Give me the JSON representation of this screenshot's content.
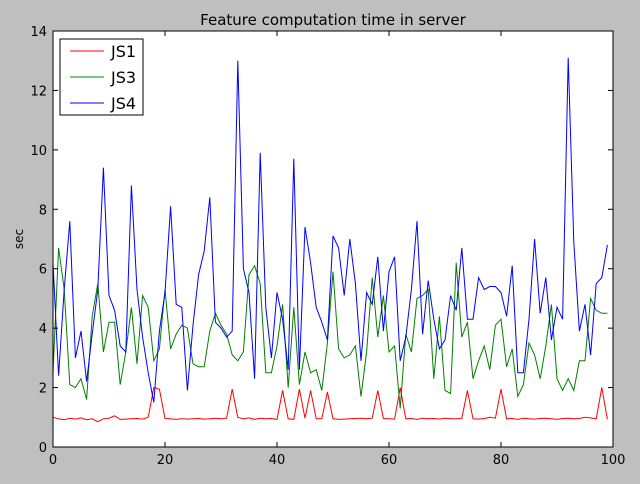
{
  "chart_data": {
    "type": "line",
    "title": "Feature computation time in server",
    "xlabel": "",
    "ylabel": "sec",
    "xlim": [
      0,
      100
    ],
    "ylim": [
      0,
      14
    ],
    "xticks": [
      0,
      20,
      40,
      60,
      80,
      100
    ],
    "yticks": [
      0,
      2,
      4,
      6,
      8,
      10,
      12,
      14
    ],
    "grid": false,
    "legend": "top-left",
    "series": [
      {
        "name": "JS1",
        "color": "#ff0000",
        "values": [
          1.0,
          0.95,
          0.92,
          0.97,
          0.94,
          0.98,
          0.92,
          0.95,
          0.85,
          0.95,
          0.97,
          1.05,
          0.93,
          0.94,
          0.95,
          0.96,
          0.94,
          1.0,
          2.0,
          1.95,
          0.96,
          0.95,
          0.93,
          0.95,
          0.94,
          0.95,
          0.96,
          0.94,
          0.95,
          0.97,
          0.95,
          0.97,
          1.95,
          1.0,
          0.95,
          0.98,
          0.93,
          0.97,
          0.95,
          0.96,
          0.93,
          1.9,
          0.95,
          0.93,
          1.95,
          0.97,
          1.9,
          0.95,
          0.95,
          1.85,
          0.95,
          0.93,
          0.94,
          0.95,
          0.96,
          0.97,
          0.95,
          0.97,
          1.9,
          0.96,
          0.95,
          0.94,
          2.0,
          0.95,
          0.96,
          0.93,
          0.97,
          0.95,
          0.96,
          0.94,
          0.97,
          0.95,
          0.95,
          0.96,
          1.9,
          0.95,
          0.94,
          0.96,
          1.0,
          0.97,
          1.95,
          0.95,
          0.96,
          0.93,
          0.97,
          0.95,
          0.94,
          0.96,
          0.97,
          0.95,
          0.93,
          0.96,
          0.97,
          0.95,
          0.96,
          1.0,
          0.98,
          0.95,
          2.0,
          0.93
        ]
      },
      {
        "name": "JS3",
        "color": "#008000",
        "values": [
          2.5,
          6.7,
          5.3,
          2.1,
          2.0,
          2.3,
          1.6,
          4.4,
          5.5,
          3.2,
          4.2,
          4.2,
          2.1,
          3.2,
          4.7,
          2.8,
          5.1,
          4.7,
          2.9,
          3.3,
          5.3,
          3.3,
          3.8,
          4.1,
          4.0,
          2.8,
          2.7,
          2.7,
          3.9,
          4.5,
          4.1,
          3.8,
          3.1,
          2.9,
          3.2,
          5.8,
          6.1,
          5.5,
          2.5,
          2.5,
          3.4,
          4.8,
          2.0,
          4.7,
          2.1,
          3.2,
          2.5,
          2.6,
          1.9,
          3.5,
          5.9,
          3.3,
          3.0,
          3.1,
          3.4,
          1.7,
          3.2,
          5.7,
          3.7,
          5.1,
          3.2,
          3.4,
          1.3,
          3.8,
          3.2,
          5.0,
          5.1,
          5.3,
          2.3,
          4.4,
          1.9,
          1.8,
          6.2,
          3.7,
          4.2,
          2.3,
          2.9,
          3.4,
          2.6,
          4.1,
          4.3,
          2.7,
          3.3,
          1.7,
          2.1,
          3.5,
          3.1,
          2.3,
          3.4,
          4.8,
          2.3,
          1.9,
          2.3,
          1.9,
          2.9,
          2.9,
          5.0,
          4.6,
          4.5,
          4.5
        ]
      },
      {
        "name": "JS4",
        "color": "#0000ff",
        "values": [
          6.2,
          2.4,
          5.3,
          7.6,
          3.0,
          3.9,
          2.2,
          3.8,
          5.3,
          9.4,
          5.1,
          4.6,
          3.4,
          3.2,
          8.8,
          5.3,
          3.7,
          2.5,
          1.5,
          3.9,
          5.2,
          8.1,
          4.8,
          4.7,
          1.9,
          4.1,
          5.8,
          6.6,
          8.4,
          4.2,
          4.0,
          3.7,
          3.9,
          13.0,
          6.0,
          5.2,
          2.3,
          9.9,
          4.7,
          3.0,
          5.2,
          4.3,
          2.6,
          9.7,
          2.6,
          7.4,
          6.2,
          4.7,
          4.2,
          3.6,
          7.1,
          6.7,
          5.1,
          7.0,
          5.5,
          2.9,
          5.2,
          4.8,
          6.4,
          3.9,
          5.9,
          6.4,
          2.9,
          3.7,
          5.3,
          7.6,
          3.8,
          5.6,
          4.3,
          3.3,
          3.6,
          5.1,
          4.6,
          6.7,
          4.3,
          4.3,
          5.7,
          5.3,
          5.4,
          5.4,
          5.2,
          4.4,
          6.1,
          2.5,
          2.5,
          4.3,
          7.0,
          4.5,
          5.7,
          3.6,
          4.7,
          4.3,
          13.1,
          6.9,
          3.9,
          4.8,
          3.1,
          5.5,
          5.7,
          6.8
        ]
      }
    ]
  }
}
